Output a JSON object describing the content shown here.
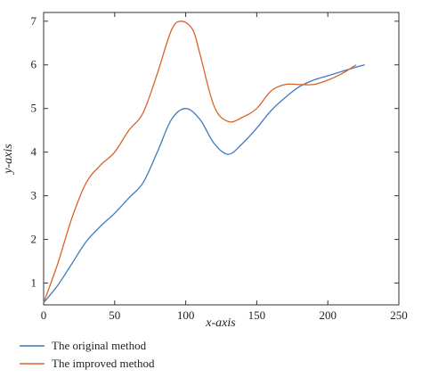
{
  "chart_data": {
    "type": "line",
    "xlabel": "x-axis",
    "ylabel": "y-axis",
    "xlim": [
      0,
      250
    ],
    "ylim": [
      0.5,
      7.2
    ],
    "xticks": [
      "0",
      "50",
      "100",
      "150",
      "200",
      "250"
    ],
    "yticks": [
      "1",
      "2",
      "3",
      "4",
      "5",
      "6",
      "7"
    ],
    "grid": false,
    "legend": "bottom-left",
    "series": [
      {
        "name": "The original method",
        "color": "#3d7abf",
        "x": [
          0,
          10,
          20,
          30,
          40,
          50,
          60,
          70,
          80,
          90,
          100,
          110,
          120,
          130,
          140,
          150,
          160,
          170,
          180,
          190,
          200,
          210,
          220,
          226
        ],
        "y": [
          0.55,
          0.95,
          1.45,
          1.95,
          2.3,
          2.6,
          2.95,
          3.3,
          4.0,
          4.75,
          5.0,
          4.75,
          4.2,
          3.95,
          4.2,
          4.55,
          4.95,
          5.25,
          5.5,
          5.65,
          5.75,
          5.85,
          5.95,
          6.0
        ]
      },
      {
        "name": "The improved method",
        "color": "#d9632a",
        "x": [
          0,
          10,
          20,
          30,
          40,
          50,
          60,
          70,
          80,
          90,
          97,
          105,
          110,
          120,
          130,
          140,
          150,
          160,
          170,
          180,
          190,
          200,
          210,
          220
        ],
        "y": [
          0.55,
          1.45,
          2.5,
          3.3,
          3.7,
          4.0,
          4.5,
          4.9,
          5.8,
          6.8,
          7.0,
          6.8,
          6.25,
          5.05,
          4.7,
          4.8,
          5.0,
          5.4,
          5.55,
          5.55,
          5.55,
          5.65,
          5.8,
          6.0
        ]
      }
    ]
  }
}
